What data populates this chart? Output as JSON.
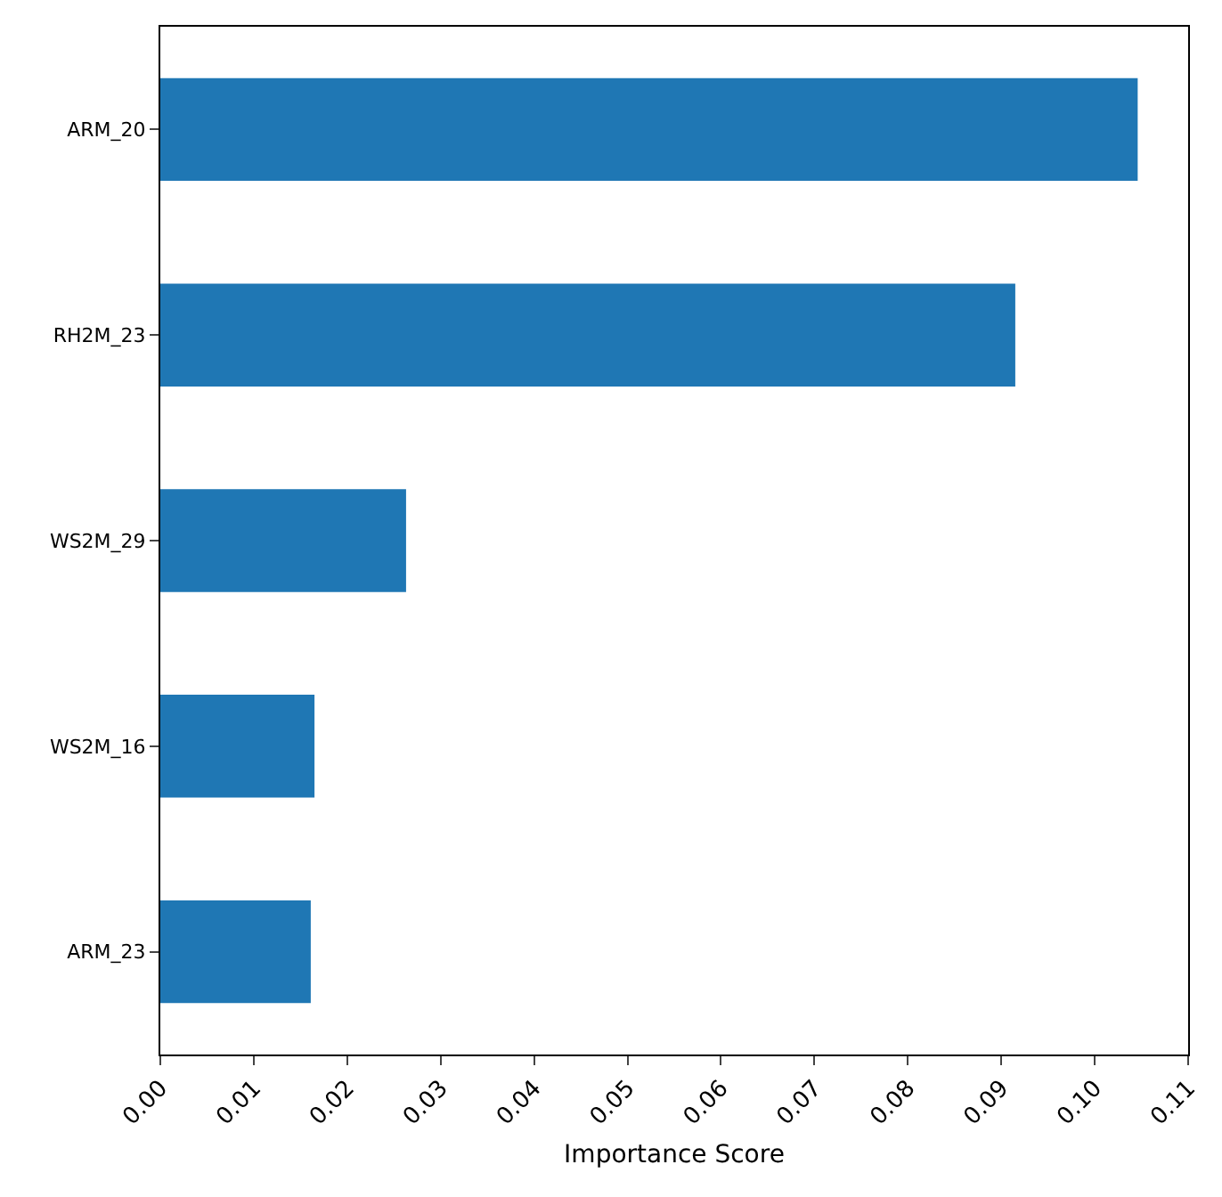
{
  "chart_data": {
    "type": "bar",
    "orientation": "horizontal",
    "xlabel": "Importance Score",
    "categories": [
      "ARM_20",
      "RH2M_23",
      "WS2M_29",
      "WS2M_16",
      "ARM_23"
    ],
    "values": [
      0.1046,
      0.0915,
      0.0263,
      0.0165,
      0.0161
    ],
    "color": "#1f77b4",
    "xlim": [
      0,
      0.11
    ],
    "xticks": [
      {
        "value": 0,
        "label": "0.00"
      },
      {
        "value": 0.01,
        "label": "0.01"
      },
      {
        "value": 0.02,
        "label": "0.02"
      },
      {
        "value": 0.03,
        "label": "0.03"
      },
      {
        "value": 0.04,
        "label": "0.04"
      },
      {
        "value": 0.05,
        "label": "0.05"
      },
      {
        "value": 0.06,
        "label": "0.06"
      },
      {
        "value": 0.07,
        "label": "0.07"
      },
      {
        "value": 0.08,
        "label": "0.08"
      },
      {
        "value": 0.09,
        "label": "0.09"
      },
      {
        "value": 0.1,
        "label": "0.10"
      },
      {
        "value": 0.11,
        "label": "0.11"
      }
    ],
    "data_labels": false
  }
}
